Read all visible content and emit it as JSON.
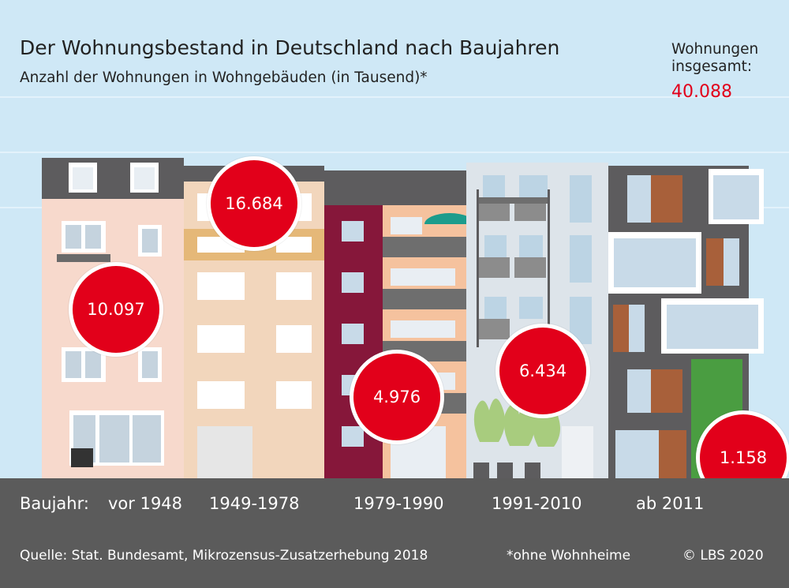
{
  "chart_data": {
    "type": "bar",
    "title": "Der Wohnungsbestand in Deutschland nach Baujahren",
    "subtitle": "Anzahl der Wohnungen in Wohngebäuden (in Tausend)*",
    "xlabel": "Baujahr:",
    "categories": [
      "vor 1948",
      "1949-1978",
      "1979-1990",
      "1991-2010",
      "ab 2011"
    ],
    "values": [
      10097,
      16684,
      4976,
      6434,
      1158
    ],
    "value_labels": [
      "10.097",
      "16.684",
      "4.976",
      "6.434",
      "1.158"
    ],
    "total_label": "Wohnungen insgesamt:",
    "total_value": "40.088"
  },
  "footer": {
    "source": "Quelle: Stat. Bundesamt, Mikrozensus-Zusatzerhebung 2018",
    "note": "*ohne Wohnheime",
    "copyright": "© LBS 2020"
  },
  "colors": {
    "accent": "#e2001a",
    "sky": "#cfe8f6",
    "ground": "#5b5b5b"
  }
}
